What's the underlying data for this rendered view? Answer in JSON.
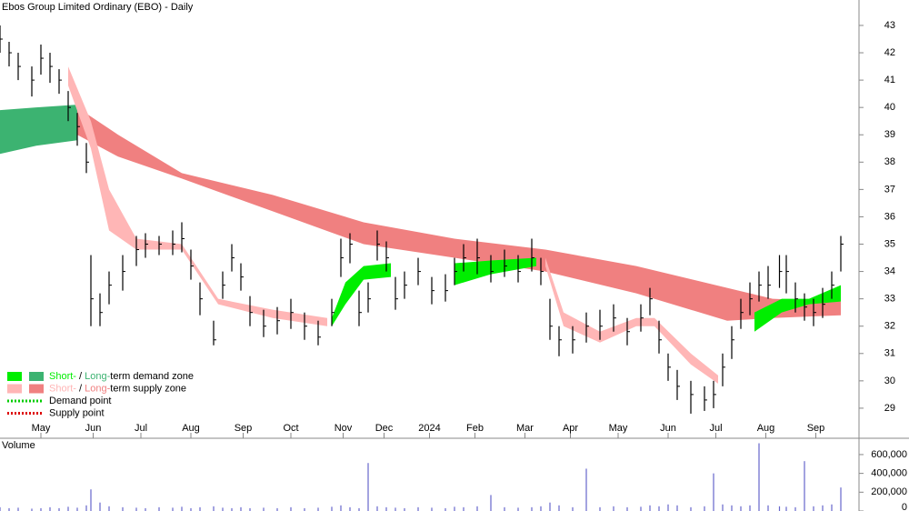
{
  "chart_data": [
    {
      "type": "ohlc",
      "title": "Ebos Group Limited Ordinary (EBO) - Daily",
      "x": [
        0,
        4,
        8,
        14,
        18,
        22,
        26,
        30,
        34,
        38,
        40,
        44,
        48,
        54,
        60,
        64,
        70,
        76,
        80,
        84,
        88,
        94,
        98,
        102,
        106,
        110,
        116,
        122,
        128,
        134,
        140,
        146,
        150,
        154,
        158,
        162,
        166,
        170,
        174,
        178,
        184,
        190,
        196,
        200,
        204,
        210,
        216,
        222,
        228,
        234,
        238,
        242,
        246,
        252,
        258,
        264,
        270,
        276,
        282,
        286,
        290,
        294,
        298,
        304,
        310,
        314,
        318,
        322,
        326,
        330,
        334,
        338,
        343,
        346,
        350,
        354,
        358,
        362,
        366,
        370
      ],
      "high": [
        43.0,
        42.4,
        42.0,
        41.5,
        42.3,
        42.0,
        41.4,
        40.6,
        39.8,
        38.7,
        34.6,
        33.2,
        34.0,
        34.6,
        35.3,
        35.4,
        35.3,
        35.5,
        35.8,
        34.8,
        33.6,
        32.2,
        34.0,
        35.0,
        34.3,
        33.1,
        32.6,
        32.7,
        33.0,
        32.5,
        32.2,
        33.0,
        35.2,
        35.4,
        33.3,
        33.6,
        35.5,
        35.1,
        33.8,
        34.0,
        34.5,
        33.8,
        33.9,
        34.5,
        35.0,
        35.2,
        34.6,
        34.8,
        34.6,
        35.2,
        34.5,
        33.0,
        32.0,
        32.0,
        32.5,
        32.6,
        32.8,
        32.3,
        32.8,
        33.4,
        32.2,
        31.0,
        30.4,
        30.0,
        29.8,
        30.0,
        31.0,
        32.0,
        33.0,
        33.6,
        34.0,
        34.2,
        34.6,
        34.6,
        33.6,
        33.2,
        33.0,
        33.4,
        34.0,
        35.3
      ],
      "low": [
        42.0,
        41.5,
        41.0,
        40.4,
        41.2,
        40.9,
        40.5,
        39.5,
        38.6,
        37.6,
        32.0,
        32.0,
        32.8,
        33.3,
        34.2,
        34.5,
        34.6,
        34.6,
        34.7,
        33.7,
        32.4,
        31.3,
        33.0,
        34.0,
        33.3,
        32.0,
        31.6,
        31.7,
        31.9,
        31.5,
        31.3,
        32.0,
        33.8,
        34.3,
        32.0,
        32.5,
        34.4,
        34.0,
        32.6,
        33.0,
        33.5,
        32.8,
        32.9,
        33.5,
        34.0,
        33.9,
        33.6,
        33.8,
        33.6,
        34.0,
        33.5,
        31.5,
        30.9,
        31.0,
        31.4,
        31.5,
        31.8,
        31.3,
        31.8,
        32.4,
        31.0,
        30.0,
        29.3,
        28.8,
        28.9,
        29.0,
        29.8,
        30.8,
        31.9,
        32.4,
        32.9,
        33.0,
        33.4,
        33.2,
        32.5,
        32.2,
        32.0,
        32.3,
        33.0,
        34.0
      ],
      "close": [
        42.5,
        42.0,
        41.5,
        41.0,
        41.8,
        41.5,
        41.0,
        40.0,
        39.3,
        38.0,
        33.0,
        32.5,
        33.5,
        34.0,
        34.8,
        35.0,
        35.0,
        35.0,
        35.2,
        34.2,
        33.0,
        31.5,
        33.5,
        34.5,
        33.8,
        32.5,
        32.0,
        32.2,
        32.5,
        32.0,
        31.6,
        32.5,
        34.5,
        35.0,
        32.5,
        33.0,
        35.0,
        34.5,
        33.0,
        33.5,
        34.0,
        33.3,
        33.3,
        34.0,
        34.5,
        34.5,
        34.0,
        34.2,
        34.0,
        34.5,
        34.0,
        32.0,
        31.5,
        31.5,
        32.0,
        32.0,
        32.3,
        31.8,
        32.3,
        33.0,
        31.5,
        30.5,
        29.8,
        29.5,
        29.3,
        29.5,
        30.5,
        31.5,
        32.5,
        33.0,
        33.5,
        33.5,
        34.0,
        34.0,
        33.0,
        32.7,
        32.5,
        32.8,
        33.5,
        35.0
      ],
      "bands": [
        {
          "color": "#3cb371",
          "x": [
            0,
            16,
            34
          ],
          "upper": [
            39.9,
            40.0,
            40.1
          ],
          "lower": [
            38.3,
            38.6,
            38.8
          ]
        },
        {
          "color": "#f08080",
          "x": [
            34,
            52,
            80,
            120,
            160,
            200,
            240,
            280,
            320,
            340,
            370
          ],
          "upper": [
            40.0,
            39.0,
            37.6,
            36.8,
            35.8,
            35.2,
            34.8,
            34.2,
            33.4,
            33.0,
            32.9
          ],
          "lower": [
            39.0,
            38.2,
            37.4,
            36.2,
            35.0,
            34.5,
            34.0,
            33.2,
            32.2,
            32.3,
            32.4
          ]
        },
        {
          "color": "#ffb6b6",
          "x": [
            30,
            40,
            48,
            60,
            80,
            96,
            120,
            144
          ],
          "upper": [
            41.5,
            39.5,
            37.0,
            35.2,
            35.0,
            33.0,
            32.6,
            32.3
          ],
          "lower": [
            40.8,
            38.5,
            35.5,
            34.8,
            34.8,
            32.8,
            32.3,
            32.0
          ]
        },
        {
          "color": "#00ee00",
          "x": [
            146,
            152,
            160,
            172
          ],
          "upper": [
            32.3,
            33.6,
            34.2,
            34.3
          ],
          "lower": [
            32.0,
            32.8,
            33.7,
            33.8
          ]
        },
        {
          "color": "#00ee00",
          "x": [
            200,
            216,
            236
          ],
          "upper": [
            34.3,
            34.4,
            34.5
          ],
          "lower": [
            33.5,
            33.9,
            34.2
          ]
        },
        {
          "color": "#ffb6b6",
          "x": [
            240,
            248,
            264,
            280,
            288,
            304,
            316
          ],
          "upper": [
            34.5,
            32.5,
            31.8,
            32.3,
            32.3,
            31.0,
            30.2
          ],
          "lower": [
            34.2,
            32.0,
            31.4,
            32.0,
            32.0,
            30.6,
            29.9
          ]
        },
        {
          "color": "#00ee00",
          "x": [
            332,
            344,
            356,
            370
          ],
          "upper": [
            32.5,
            33.0,
            33.0,
            33.5
          ],
          "lower": [
            31.8,
            32.5,
            32.8,
            32.9
          ]
        }
      ],
      "xlim": [
        0,
        378
      ],
      "xticks": [
        {
          "value": 18,
          "label": "May"
        },
        {
          "value": 41,
          "label": "Jun"
        },
        {
          "value": 62,
          "label": "Jul"
        },
        {
          "value": 84,
          "label": "Aug"
        },
        {
          "value": 107,
          "label": "Sep"
        },
        {
          "value": 128,
          "label": "Oct"
        },
        {
          "value": 151,
          "label": "Nov"
        },
        {
          "value": 169,
          "label": "Dec"
        },
        {
          "value": 189,
          "label": "2024"
        },
        {
          "value": 209,
          "label": "Feb"
        },
        {
          "value": 231,
          "label": "Mar"
        },
        {
          "value": 251,
          "label": "Apr"
        },
        {
          "value": 272,
          "label": "May"
        },
        {
          "value": 294,
          "label": "Jun"
        },
        {
          "value": 315,
          "label": "Jul"
        },
        {
          "value": 337,
          "label": "Aug"
        },
        {
          "value": 359,
          "label": "Sep"
        }
      ],
      "ylim": [
        27.9,
        43.93
      ],
      "yticks": [
        29,
        30,
        31,
        32,
        33,
        34,
        35,
        36,
        37,
        38,
        39,
        40,
        41,
        42,
        43
      ]
    },
    {
      "type": "bar",
      "title": "Volume",
      "color": "#6666cc",
      "x": [
        0,
        4,
        8,
        14,
        18,
        22,
        26,
        30,
        34,
        38,
        40,
        44,
        48,
        54,
        60,
        64,
        70,
        76,
        80,
        84,
        88,
        94,
        98,
        102,
        106,
        110,
        116,
        122,
        128,
        134,
        140,
        146,
        150,
        154,
        158,
        162,
        166,
        170,
        174,
        178,
        184,
        190,
        196,
        200,
        204,
        210,
        216,
        222,
        228,
        234,
        238,
        242,
        246,
        252,
        258,
        264,
        270,
        276,
        282,
        286,
        290,
        294,
        298,
        304,
        310,
        314,
        318,
        322,
        326,
        330,
        334,
        338,
        343,
        346,
        350,
        354,
        358,
        362,
        366,
        370
      ],
      "values": [
        40000,
        30000,
        35000,
        25000,
        30000,
        40000,
        30000,
        45000,
        35000,
        60000,
        230000,
        90000,
        50000,
        40000,
        35000,
        30000,
        40000,
        35000,
        45000,
        30000,
        40000,
        50000,
        35000,
        30000,
        40000,
        30000,
        35000,
        30000,
        40000,
        30000,
        35000,
        45000,
        60000,
        40000,
        30000,
        510000,
        50000,
        40000,
        35000,
        30000,
        40000,
        35000,
        30000,
        45000,
        40000,
        50000,
        170000,
        40000,
        35000,
        40000,
        50000,
        90000,
        60000,
        40000,
        450000,
        40000,
        50000,
        40000,
        45000,
        60000,
        50000,
        70000,
        60000,
        40000,
        50000,
        400000,
        70000,
        60000,
        50000,
        60000,
        720000,
        60000,
        50000,
        45000,
        40000,
        530000,
        50000,
        60000,
        70000,
        250000
      ],
      "xlim": [
        0,
        378
      ],
      "ylim": [
        0,
        725000
      ],
      "yticks": [
        0,
        {
          "value": 200000,
          "label": "200,000"
        },
        {
          "value": 400000,
          "label": "400,000"
        },
        {
          "value": 600000,
          "label": "600,000"
        }
      ]
    }
  ],
  "legend": [
    {
      "colors": [
        "#00ee00",
        "#3cb371"
      ],
      "parts": [
        "Short-",
        " / ",
        "Long-",
        "term demand zone"
      ]
    },
    {
      "colors": [
        "#ffb6b6",
        "#f08080"
      ],
      "parts": [
        "Short-",
        " / ",
        "Long-",
        "term supply zone"
      ]
    },
    {
      "dotted": "#00cc00",
      "label": "Demand point"
    },
    {
      "dotted": "#dd0000",
      "label": "Supply point"
    }
  ]
}
